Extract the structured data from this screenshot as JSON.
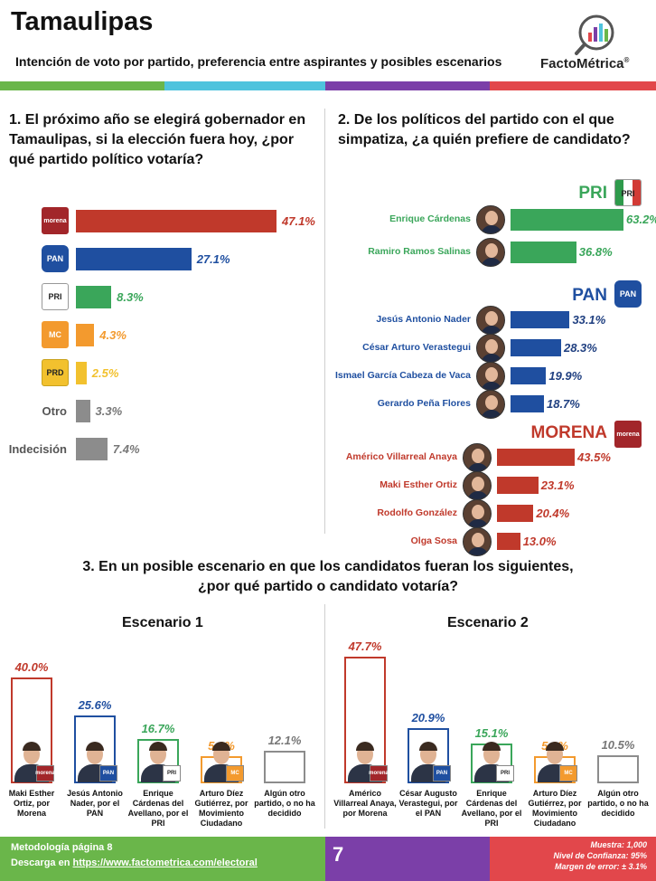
{
  "header": {
    "title": "Tamaulipas",
    "subtitle": "Intención de voto por partido, preferencia entre aspirantes y posibles escenarios",
    "brand": "FactoMétrica",
    "brand_mark": "®"
  },
  "colors": {
    "morena": "#c0392b",
    "pan": "#1f4fa0",
    "pri": "#3aa65a",
    "mc": "#f39a2e",
    "prd": "#f2c12e",
    "other": "#8c8c8c",
    "stripe_green": "#6ab64a",
    "stripe_cyan": "#4fc3dd",
    "stripe_purple": "#7b3fa8",
    "stripe_red": "#e2474b"
  },
  "q1": {
    "question": "1. El próximo año se elegirá gobernador en Tamaulipas, si la elección fuera hoy, ¿por qué partido político votaría?"
  },
  "q2": {
    "question": "2. De los políticos del partido con el que simpatiza, ¿a quién prefiere de candidato?",
    "pri_head": "PRI",
    "pan_head": "PAN",
    "morena_head": "MORENA"
  },
  "q3": {
    "question_line1": "3. En un posible escenario en que los candidatos fueran los siguientes,",
    "question_line2": "¿por qué partido o candidato votaría?",
    "scenario1_title": "Escenario 1",
    "scenario2_title": "Escenario 2"
  },
  "party_icons": {
    "morena": "morena",
    "pan": "PAN",
    "pri": "PRI",
    "mc": "MC",
    "prd": "PRD"
  },
  "chart_data": [
    {
      "type": "bar",
      "orientation": "horizontal",
      "categories": [
        "morena",
        "PAN",
        "PRI",
        "MC",
        "PRD",
        "Otro",
        "Indecisión"
      ],
      "values": [
        47.1,
        27.1,
        8.3,
        4.3,
        2.5,
        3.3,
        7.4
      ],
      "labels": [
        "47.1%",
        "27.1%",
        "8.3%",
        "4.3%",
        "2.5%",
        "3.3%",
        "7.4%"
      ],
      "text_categories": [
        "Otro",
        "Indecisión"
      ],
      "colors": [
        "#c0392b",
        "#1f4fa0",
        "#3aa65a",
        "#f39a2e",
        "#f2c12e",
        "#8c8c8c",
        "#8c8c8c"
      ]
    },
    {
      "type": "bar",
      "orientation": "horizontal",
      "groups": [
        {
          "party": "PRI",
          "color": "#3aa65a",
          "candidates": [
            "Enrique Cárdenas",
            "Ramiro Ramos Salinas"
          ],
          "values": [
            63.2,
            36.8
          ],
          "labels": [
            "63.2%",
            "36.8%"
          ]
        },
        {
          "party": "PAN",
          "color": "#1f4fa0",
          "candidates": [
            "Jesús Antonio Nader",
            "César Arturo Verastegui",
            "Ismael García Cabeza de Vaca",
            "Gerardo Peña Flores"
          ],
          "values": [
            33.1,
            28.3,
            19.9,
            18.7
          ],
          "labels": [
            "33.1%",
            "28.3%",
            "19.9%",
            "18.7%"
          ]
        },
        {
          "party": "MORENA",
          "color": "#c0392b",
          "candidates": [
            "Américo Villarreal Anaya",
            "Maki Esther Ortiz",
            "Rodolfo González",
            "Olga Sosa"
          ],
          "values": [
            43.5,
            23.1,
            20.4,
            13.0
          ],
          "labels": [
            "43.5%",
            "23.1%",
            "20.4%",
            "13.0%"
          ]
        }
      ]
    },
    {
      "type": "bar",
      "orientation": "vertical",
      "title": "Escenario 1",
      "categories": [
        "Maki Esther Ortiz, por Morena",
        "Jesús Antonio Nader, por el PAN",
        "Enrique Cárdenas del Avellano, por el PRI",
        "Arturo Díez Gutiérrez, por Movimiento Ciudadano",
        "Algún otro partido, o no ha decidido"
      ],
      "values": [
        40.0,
        25.6,
        16.7,
        5.6,
        12.1
      ],
      "labels": [
        "40.0%",
        "25.6%",
        "16.7%",
        "5.6%",
        "12.1%"
      ],
      "colors": [
        "#c0392b",
        "#1f4fa0",
        "#3aa65a",
        "#f39a2e",
        "#8c8c8c"
      ]
    },
    {
      "type": "bar",
      "orientation": "vertical",
      "title": "Escenario 2",
      "categories": [
        "Américo Villarreal Anaya, por Morena",
        "César Augusto Verastegui, por el PAN",
        "Enrique Cárdenas del Avellano, por el PRI",
        "Arturo Díez Gutiérrez, por Movimiento Ciudadano",
        "Algún otro partido, o no ha decidido"
      ],
      "values": [
        47.7,
        20.9,
        15.1,
        5.8,
        10.5
      ],
      "labels": [
        "47.7%",
        "20.9%",
        "15.1%",
        "5.8%",
        "10.5%"
      ],
      "colors": [
        "#c0392b",
        "#1f4fa0",
        "#3aa65a",
        "#f39a2e",
        "#8c8c8c"
      ]
    }
  ],
  "footer": {
    "methodology": "Metodología página 8",
    "download_prefix": "Descarga en ",
    "download_url": "https://www.factometrica.com/electoral",
    "page_number": "7",
    "sample": "Muestra: 1,000",
    "confidence": "Nivel de Confianza: 95%",
    "margin": "Margen de error: ± 3.1%"
  }
}
